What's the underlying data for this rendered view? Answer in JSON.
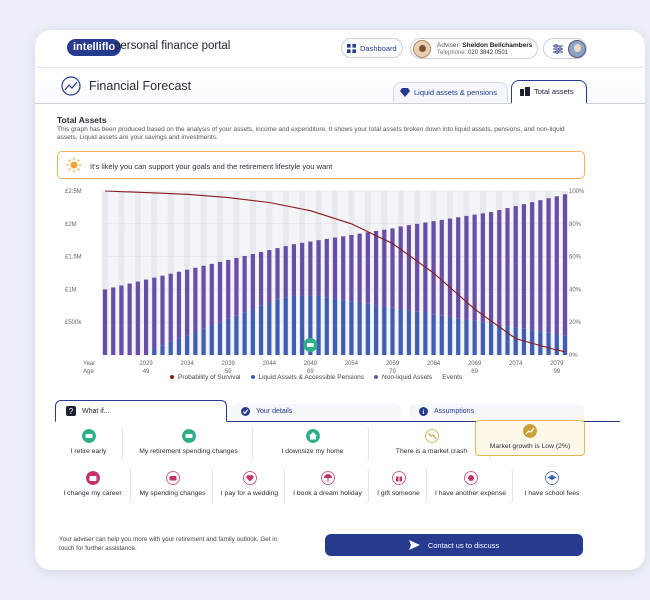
{
  "header": {
    "brand_pill": "intelliflo",
    "brand_text": "personal finance portal",
    "dashboard_label": "Dashboard",
    "adviser_label": "Adviser:",
    "adviser_name": "Sheldon Bellchambers",
    "telephone_label": "Telephone:",
    "telephone": "020 3842 0501"
  },
  "page": {
    "title": "Financial Forecast",
    "tabs": [
      {
        "label": "Liquid assets & pensions",
        "icon": "diamond-icon"
      },
      {
        "label": "Total assets",
        "icon": "buildings-icon"
      }
    ]
  },
  "section": {
    "title": "Total Assets",
    "description": "This graph has been produced based on the analysis of your assets, income and expenditure. It shows your total assets broken down into liquid assets, pensions, and non-liquid assets. Liquid assets are your savings and investments.",
    "banner": "It's likely you can support your goals and the retirement lifestyle you want"
  },
  "chart_data": {
    "type": "bar",
    "y_left_ticks": [
      "£2.5M",
      "£2M",
      "£1.5M",
      "£1M",
      "£500k"
    ],
    "y_left_range": [
      0,
      2500000
    ],
    "y_right_ticks": [
      "100%",
      "80%",
      "60%",
      "40%",
      "20%",
      "0%"
    ],
    "y_right_range": [
      0,
      100
    ],
    "x_row_labels": [
      "Year",
      "Age"
    ],
    "x_ticks": [
      {
        "year": "2029",
        "age": "49"
      },
      {
        "year": "2034",
        "age": ""
      },
      {
        "year": "2039",
        "age": "59"
      },
      {
        "year": "2044",
        "age": ""
      },
      {
        "year": "2049",
        "age": "69"
      },
      {
        "year": "2054",
        "age": ""
      },
      {
        "year": "2059",
        "age": "79"
      },
      {
        "year": "2064",
        "age": ""
      },
      {
        "year": "2069",
        "age": "89"
      },
      {
        "year": "2074",
        "age": ""
      },
      {
        "year": "2079",
        "age": "99"
      }
    ],
    "years": [
      2024,
      2025,
      2026,
      2027,
      2028,
      2029,
      2030,
      2031,
      2032,
      2033,
      2034,
      2035,
      2036,
      2037,
      2038,
      2039,
      2040,
      2041,
      2042,
      2043,
      2044,
      2045,
      2046,
      2047,
      2048,
      2049,
      2050,
      2051,
      2052,
      2053,
      2054,
      2055,
      2056,
      2057,
      2058,
      2059,
      2060,
      2061,
      2062,
      2063,
      2064,
      2065,
      2066,
      2067,
      2068,
      2069,
      2070,
      2071,
      2072,
      2073,
      2074,
      2075,
      2076,
      2077,
      2078,
      2079,
      2080
    ],
    "series": [
      {
        "name": "Liquid Assets & Accessible Pensions",
        "color": "#3e5db3",
        "values": [
          0,
          0,
          0,
          0,
          0,
          0,
          100000,
          150000,
          200000,
          250000,
          300000,
          350000,
          400000,
          450000,
          500000,
          550000,
          600000,
          650000,
          700000,
          750000,
          800000,
          850000,
          880000,
          900000,
          900000,
          900000,
          900000,
          880000,
          860000,
          840000,
          820000,
          800000,
          780000,
          760000,
          740000,
          720000,
          700000,
          680000,
          660000,
          640000,
          620000,
          600000,
          580000,
          560000,
          540000,
          520000,
          500000,
          480000,
          460000,
          440000,
          420000,
          400000,
          380000,
          360000,
          340000,
          320000,
          300000
        ]
      },
      {
        "name": "Non-liquid Assets",
        "color": "#6a4ea6",
        "values": [
          1000000,
          1030000,
          1060000,
          1090000,
          1120000,
          1150000,
          1080000,
          1060000,
          1040000,
          1020000,
          1000000,
          980000,
          960000,
          940000,
          920000,
          900000,
          880000,
          860000,
          840000,
          820000,
          800000,
          780000,
          780000,
          790000,
          810000,
          830000,
          850000,
          890000,
          930000,
          970000,
          1010000,
          1050000,
          1090000,
          1130000,
          1170000,
          1210000,
          1260000,
          1300000,
          1340000,
          1380000,
          1420000,
          1460000,
          1500000,
          1540000,
          1580000,
          1620000,
          1660000,
          1700000,
          1750000,
          1800000,
          1850000,
          1900000,
          1950000,
          2000000,
          2050000,
          2100000,
          2150000
        ]
      }
    ],
    "probability_of_survival": {
      "name": "Probability of Survival",
      "color": "#8b1a1a",
      "years": [
        2024,
        2029,
        2034,
        2039,
        2044,
        2049,
        2054,
        2059,
        2064,
        2069,
        2074,
        2079,
        2080
      ],
      "values": [
        100,
        99,
        98,
        96,
        93,
        88,
        80,
        68,
        50,
        28,
        10,
        3,
        2
      ]
    },
    "event": {
      "year": 2049,
      "icon": "sofa-icon"
    },
    "legend": [
      "Probability of Survival",
      "Liquid Assets & Accessible Pensions",
      "Non-liquid Assets",
      "Events"
    ],
    "grid": true
  },
  "whatif": {
    "tabs": [
      {
        "label": "What if...",
        "icon": "question-icon"
      },
      {
        "label": "Your details",
        "icon": "check-icon"
      },
      {
        "label": "Assumptions",
        "icon": "info-icon"
      }
    ],
    "options": [
      {
        "label": "I retire early",
        "icon": "sofa-icon",
        "color": "#2fae8a"
      },
      {
        "label": "My retirement spending changes",
        "icon": "sofa-icon",
        "color": "#2fae8a"
      },
      {
        "label": "I downsize my home",
        "icon": "house-icon",
        "color": "#2fae8a"
      },
      {
        "label": "There is a market crash",
        "icon": "market-crash-icon",
        "color": "#c9a23a"
      },
      {
        "label": "Market growth is Low (2%)",
        "icon": "growth-icon",
        "color": "#c9a23a"
      },
      {
        "label": "I change my career",
        "icon": "briefcase-icon",
        "color": "#c2336f"
      },
      {
        "label": "My spending changes",
        "icon": "wallet-icon",
        "color": "#c2336f"
      },
      {
        "label": "I pay for a wedding",
        "icon": "heart-icon",
        "color": "#c2336f"
      },
      {
        "label": "I book a dream holiday",
        "icon": "umbrella-icon",
        "color": "#c2336f"
      },
      {
        "label": "I gift someone",
        "icon": "gift-icon",
        "color": "#c2336f"
      },
      {
        "label": "I have another expense",
        "icon": "expense-icon",
        "color": "#c2336f"
      },
      {
        "label": "I have school fees",
        "icon": "graduation-icon",
        "color": "#3e5db3"
      }
    ]
  },
  "footer": {
    "text": "Your adviser can help you more with your retirement and family outlook. Get in touch for further assistance.",
    "contact_label": "Contact us to discuss"
  }
}
